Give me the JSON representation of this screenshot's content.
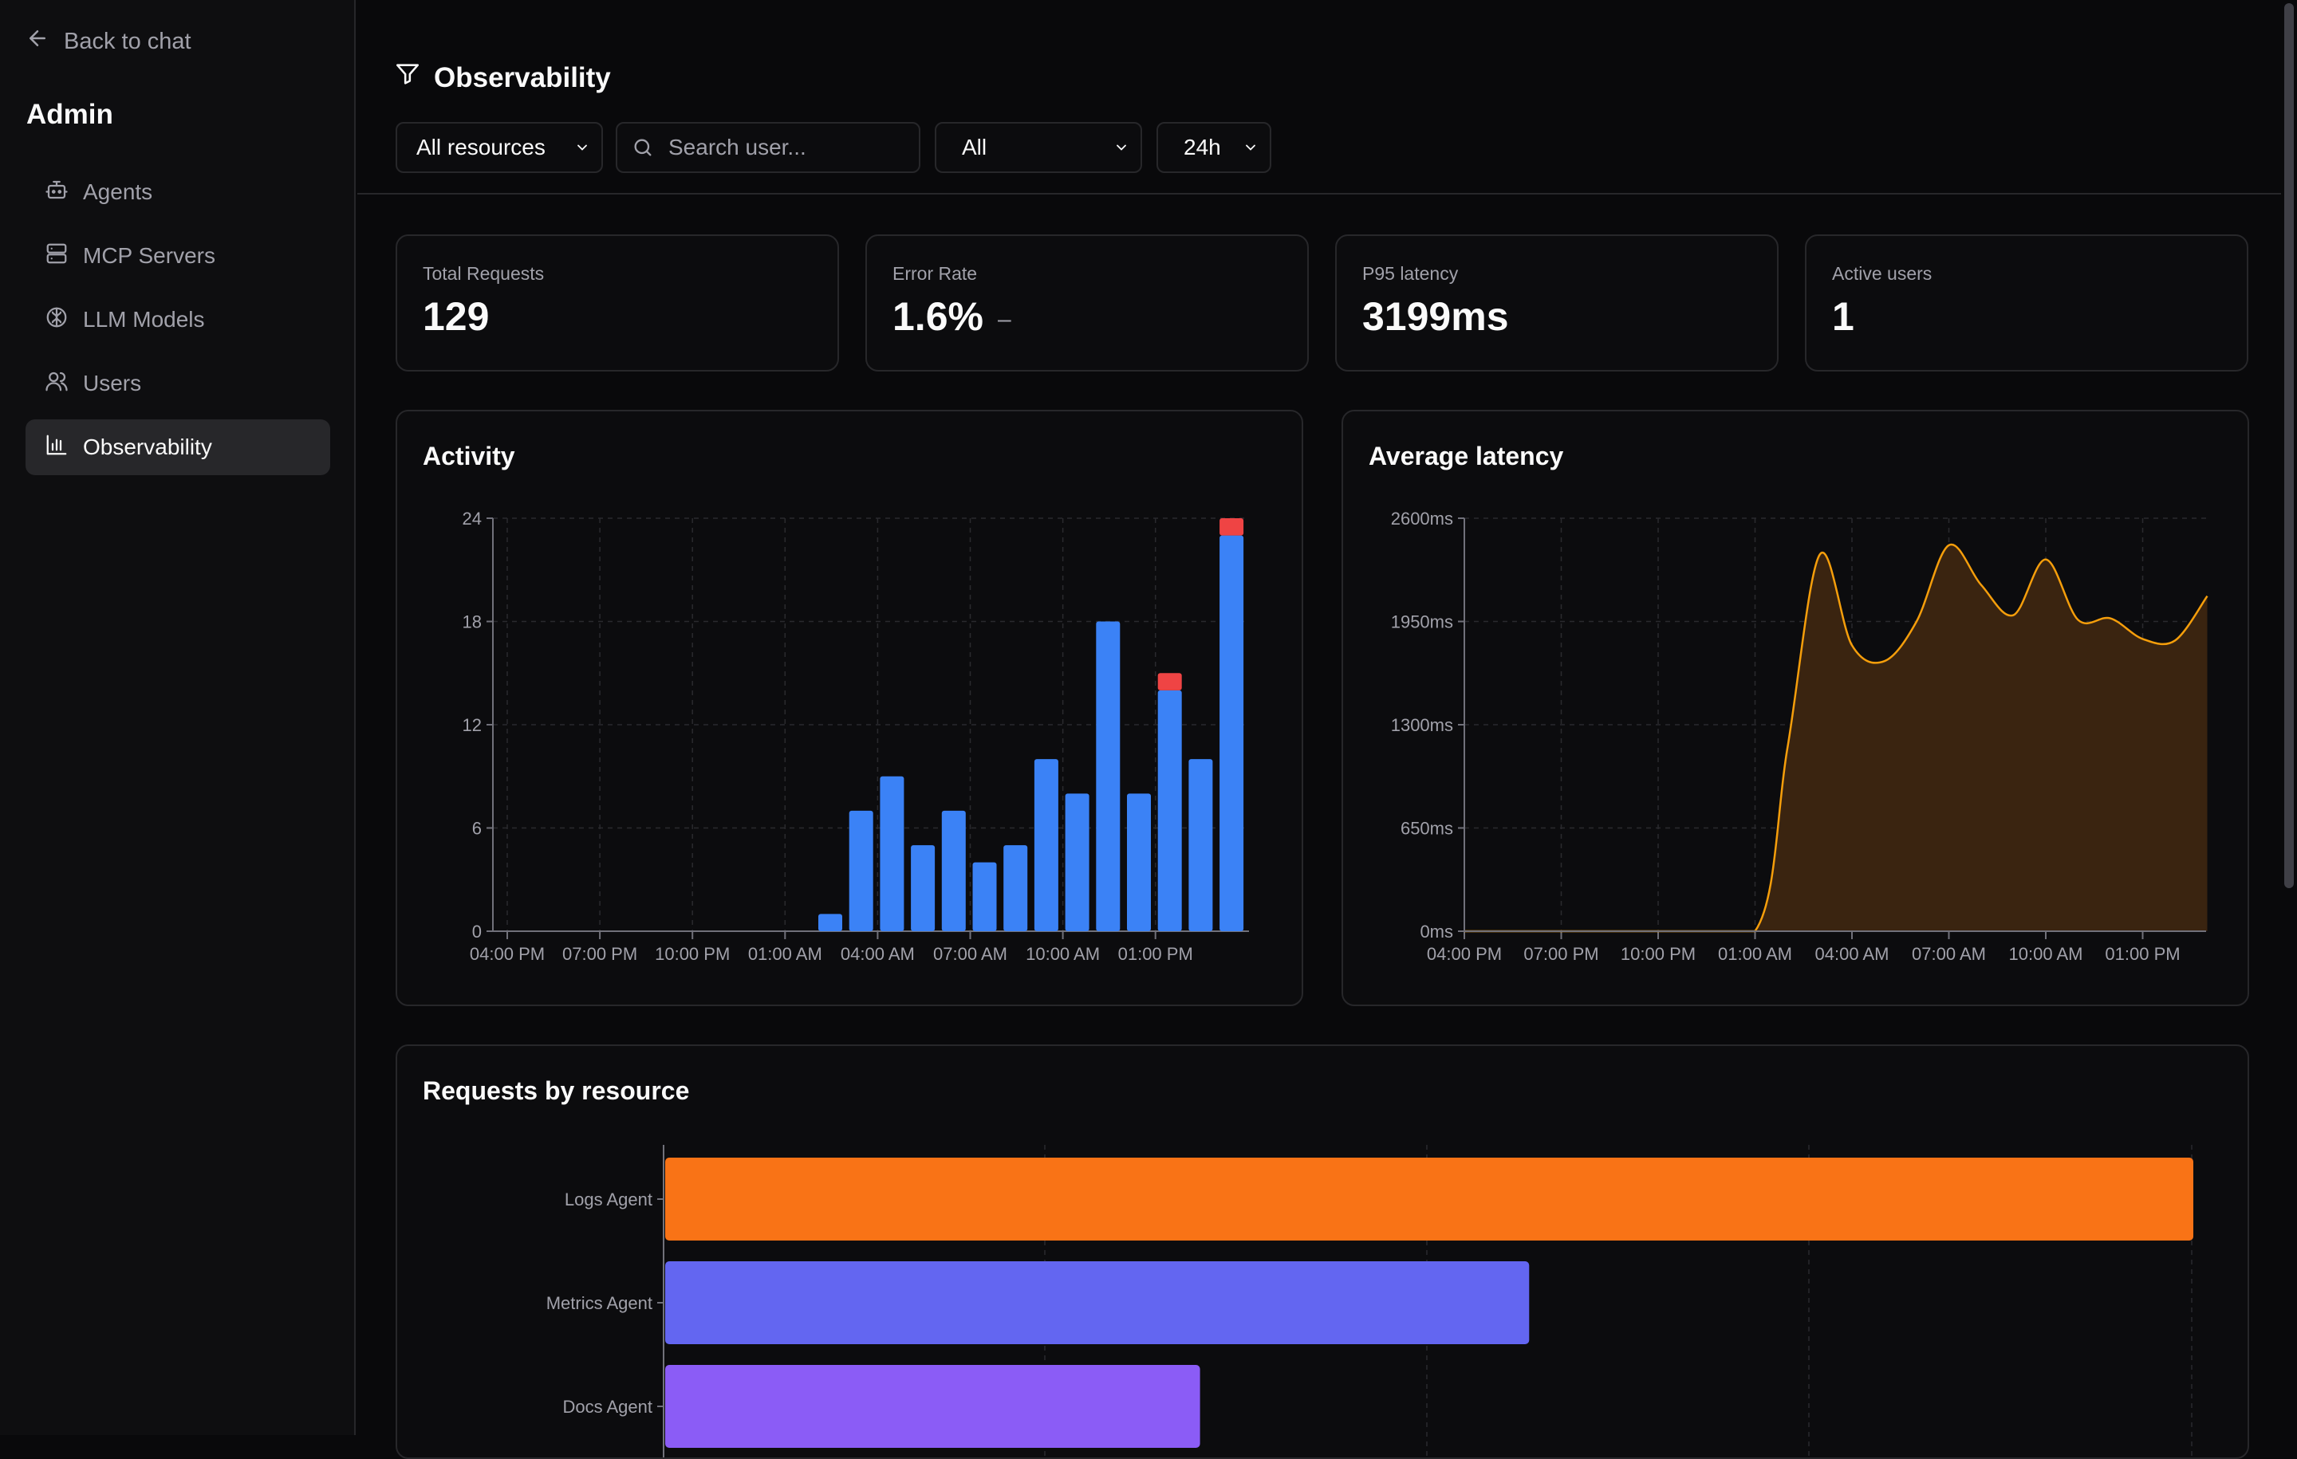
{
  "sidebar": {
    "back_label": "Back to chat",
    "title": "Admin",
    "items": [
      {
        "label": "Agents",
        "icon": "bot-icon"
      },
      {
        "label": "MCP Servers",
        "icon": "server-icon"
      },
      {
        "label": "LLM Models",
        "icon": "brain-icon"
      },
      {
        "label": "Users",
        "icon": "users-icon"
      },
      {
        "label": "Observability",
        "icon": "bar-chart-icon",
        "active": true
      }
    ]
  },
  "header": {
    "title": "Observability",
    "filters": {
      "resources": "All resources",
      "search_placeholder": "Search user...",
      "status": "All",
      "range": "24h"
    }
  },
  "stats": [
    {
      "label": "Total Requests",
      "value": "129"
    },
    {
      "label": "Error Rate",
      "value": "1.6%",
      "trend": "–"
    },
    {
      "label": "P95 latency",
      "value": "3199ms"
    },
    {
      "label": "Active users",
      "value": "1"
    }
  ],
  "colors": {
    "success": "#3b82f6",
    "error": "#ef4444",
    "latency": "#f59e0b",
    "resources": [
      "#f97316",
      "#6366f1",
      "#8b5cf6"
    ]
  },
  "chart_data": [
    {
      "type": "bar",
      "title": "Activity",
      "x_ticks": [
        "04:00 PM",
        "07:00 PM",
        "10:00 PM",
        "01:00 AM",
        "04:00 AM",
        "07:00 AM",
        "10:00 AM",
        "01:00 PM"
      ],
      "y_ticks": [
        "0",
        "6",
        "12",
        "18",
        "24"
      ],
      "ylim": [
        0,
        24
      ],
      "x_hours_start": 0,
      "bars": [
        {
          "hour": 10,
          "success": 1,
          "error": 0
        },
        {
          "hour": 11,
          "success": 7,
          "error": 0
        },
        {
          "hour": 12,
          "success": 9,
          "error": 0
        },
        {
          "hour": 13,
          "success": 5,
          "error": 0
        },
        {
          "hour": 14,
          "success": 7,
          "error": 0
        },
        {
          "hour": 15,
          "success": 4,
          "error": 0
        },
        {
          "hour": 16,
          "success": 5,
          "error": 0
        },
        {
          "hour": 17,
          "success": 10,
          "error": 0
        },
        {
          "hour": 18,
          "success": 8,
          "error": 0
        },
        {
          "hour": 19,
          "success": 18,
          "error": 0
        },
        {
          "hour": 20,
          "success": 8,
          "error": 0
        },
        {
          "hour": 21,
          "success": 14,
          "error": 1
        },
        {
          "hour": 22,
          "success": 10,
          "error": 0
        },
        {
          "hour": 23,
          "success": 23,
          "error": 1
        }
      ],
      "grid": true
    },
    {
      "type": "area",
      "title": "Average latency",
      "x_ticks": [
        "04:00 PM",
        "07:00 PM",
        "10:00 PM",
        "01:00 AM",
        "04:00 AM",
        "07:00 AM",
        "10:00 AM",
        "01:00 PM"
      ],
      "y_ticks": [
        "0ms",
        "650ms",
        "1300ms",
        "1950ms",
        "2600ms"
      ],
      "ylim": [
        0,
        2600
      ],
      "points": [
        {
          "hour": 0,
          "ms": 0
        },
        {
          "hour": 3,
          "ms": 0
        },
        {
          "hour": 6,
          "ms": 0
        },
        {
          "hour": 9,
          "ms": 0
        },
        {
          "hour": 10,
          "ms": 1150
        },
        {
          "hour": 11,
          "ms": 2370
        },
        {
          "hour": 12,
          "ms": 1800
        },
        {
          "hour": 13,
          "ms": 1700
        },
        {
          "hour": 14,
          "ms": 1950
        },
        {
          "hour": 15,
          "ms": 2430
        },
        {
          "hour": 16,
          "ms": 2180
        },
        {
          "hour": 17,
          "ms": 1990
        },
        {
          "hour": 18,
          "ms": 2340
        },
        {
          "hour": 19,
          "ms": 1960
        },
        {
          "hour": 20,
          "ms": 1970
        },
        {
          "hour": 21,
          "ms": 1840
        },
        {
          "hour": 22,
          "ms": 1830
        },
        {
          "hour": 23,
          "ms": 2110
        }
      ],
      "grid": true
    },
    {
      "type": "bar",
      "orientation": "horizontal",
      "title": "Requests by resource",
      "categories": [
        "Logs Agent",
        "Metrics Agent",
        "Docs Agent"
      ],
      "values": [
        52,
        29.4,
        18.2
      ],
      "xlim": [
        0,
        52
      ],
      "grid": true
    }
  ]
}
